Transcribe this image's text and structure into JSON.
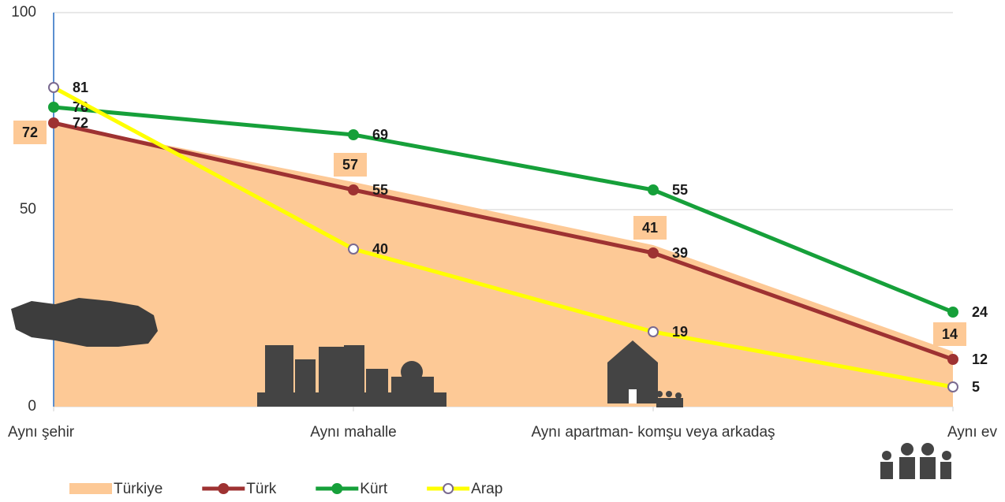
{
  "chart_data": {
    "type": "line",
    "categories": [
      "Aynı şehir",
      "Aynı mahalle",
      "Aynı apartman- komşu veya arkadaş",
      "Aynı ev"
    ],
    "series": [
      {
        "name": "Türkiye",
        "style": "area",
        "color": "#fdc996",
        "values": [
          72,
          57,
          41,
          14
        ]
      },
      {
        "name": "Türk",
        "style": "line",
        "color": "#9e3232",
        "values": [
          72,
          55,
          39,
          12
        ]
      },
      {
        "name": "Kürt",
        "style": "line",
        "color": "#16a03a",
        "values": [
          76,
          69,
          55,
          24
        ]
      },
      {
        "name": "Arap",
        "style": "line",
        "color": "#ffff00",
        "marker_fill": "#ffffff",
        "marker_edge": "#7a6a90",
        "values": [
          81,
          40,
          19,
          5
        ]
      }
    ],
    "ylim": [
      0,
      100
    ],
    "yticks": [
      0,
      50,
      100
    ],
    "grid": true
  }
}
